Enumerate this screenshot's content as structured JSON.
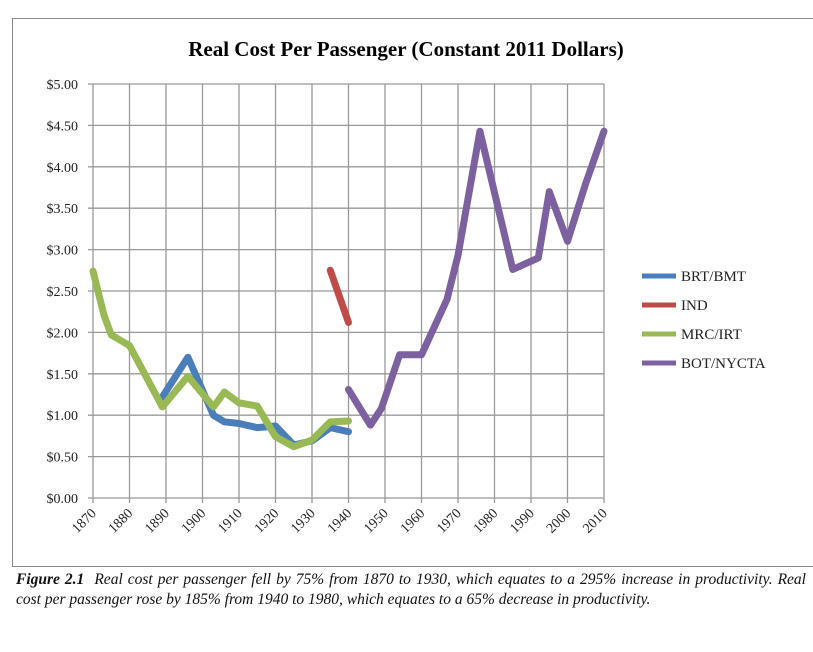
{
  "chart_data": {
    "type": "line",
    "title": "Real Cost Per Passenger (Constant 2011 Dollars)",
    "xlabel": "",
    "ylabel": "",
    "xlim": [
      1870,
      2010
    ],
    "ylim": [
      0,
      5
    ],
    "grid": true,
    "legend_position": "right",
    "x_ticks": [
      "1870",
      "1880",
      "1890",
      "1900",
      "1910",
      "1920",
      "1930",
      "1940",
      "1950",
      "1960",
      "1970",
      "1980",
      "1990",
      "2000",
      "2010"
    ],
    "y_ticks": [
      "$0.00",
      "$0.50",
      "$1.00",
      "$1.50",
      "$2.00",
      "$2.50",
      "$3.00",
      "$3.50",
      "$4.00",
      "$4.50",
      "$5.00"
    ],
    "series": [
      {
        "name": "BRT/BMT",
        "color": "#4a7ebb",
        "x": [
          1889,
          1896,
          1903,
          1906,
          1910,
          1915,
          1920,
          1925,
          1930,
          1935,
          1940
        ],
        "y": [
          1.22,
          1.7,
          1.0,
          0.92,
          0.9,
          0.85,
          0.87,
          0.64,
          0.69,
          0.85,
          0.8
        ]
      },
      {
        "name": "IND",
        "color": "#be4b48",
        "x": [
          1935,
          1940
        ],
        "y": [
          2.75,
          2.12
        ]
      },
      {
        "name": "MRC/IRT",
        "color": "#98b954",
        "x": [
          1870,
          1873,
          1875,
          1880,
          1889,
          1896,
          1903,
          1906,
          1910,
          1915,
          1920,
          1925,
          1930,
          1935,
          1940
        ],
        "y": [
          2.74,
          2.21,
          1.97,
          1.84,
          1.1,
          1.47,
          1.1,
          1.28,
          1.15,
          1.11,
          0.74,
          0.62,
          0.7,
          0.92,
          0.93
        ]
      },
      {
        "name": "BOT/NYCTA",
        "color": "#7d60a0",
        "x": [
          1940,
          1946,
          1949,
          1954,
          1960,
          1967,
          1970,
          1976,
          1985,
          1992,
          1995,
          2000,
          2005,
          2010
        ],
        "y": [
          1.31,
          0.88,
          1.08,
          1.73,
          1.73,
          2.4,
          2.93,
          4.43,
          2.76,
          2.9,
          3.7,
          3.1,
          3.8,
          4.43
        ]
      }
    ]
  },
  "caption": {
    "label": "Figure 2.1",
    "text": "Real cost per passenger fell by 75% from 1870 to 1930, which equates to a 295% increase in productivity.  Real cost per passenger rose by 185% from 1940 to 1980, which equates to a 65% decrease in productivity."
  }
}
